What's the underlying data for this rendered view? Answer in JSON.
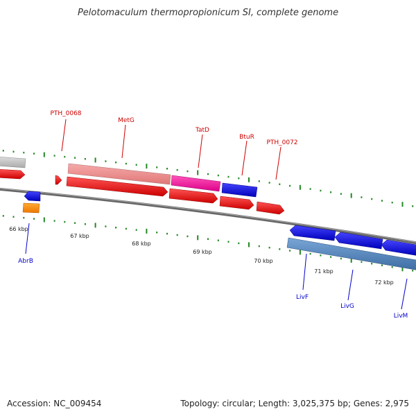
{
  "header": {
    "title": "Pelotomaculum thermopropionicum SI, complete genome"
  },
  "footer": {
    "accession": "Accession: NC_009454",
    "topology": "Topology: circular; Length: 3,025,375 bp; Genes: 2,975"
  },
  "scale": {
    "unit": "kbp",
    "labels": [
      "66 kbp",
      "67 kbp",
      "68 kbp",
      "69 kbp",
      "70 kbp",
      "71 kbp",
      "72 kbp"
    ]
  },
  "colors": {
    "forward_label": "#cc0000",
    "reverse_label": "#0000cc",
    "tick": "#228822",
    "backbone": "#777777",
    "red_gene": "#ee0000",
    "pink_gene": "#ee8888",
    "magenta_gene": "#ee1199",
    "blue_gene": "#0000ee",
    "steel_gene": "#4f7fb8",
    "grey_gene": "#bbbbbb",
    "orange_gene": "#ff8800"
  },
  "genes": {
    "forward": [
      {
        "name": "PTH_0068"
      },
      {
        "name": "MetG"
      },
      {
        "name": "TatD"
      },
      {
        "name": "BtuR"
      },
      {
        "name": "PTH_0072"
      }
    ],
    "reverse": [
      {
        "name": "AbrB"
      },
      {
        "name": "LivF"
      },
      {
        "name": "LivG"
      },
      {
        "name": "LivM"
      }
    ]
  }
}
